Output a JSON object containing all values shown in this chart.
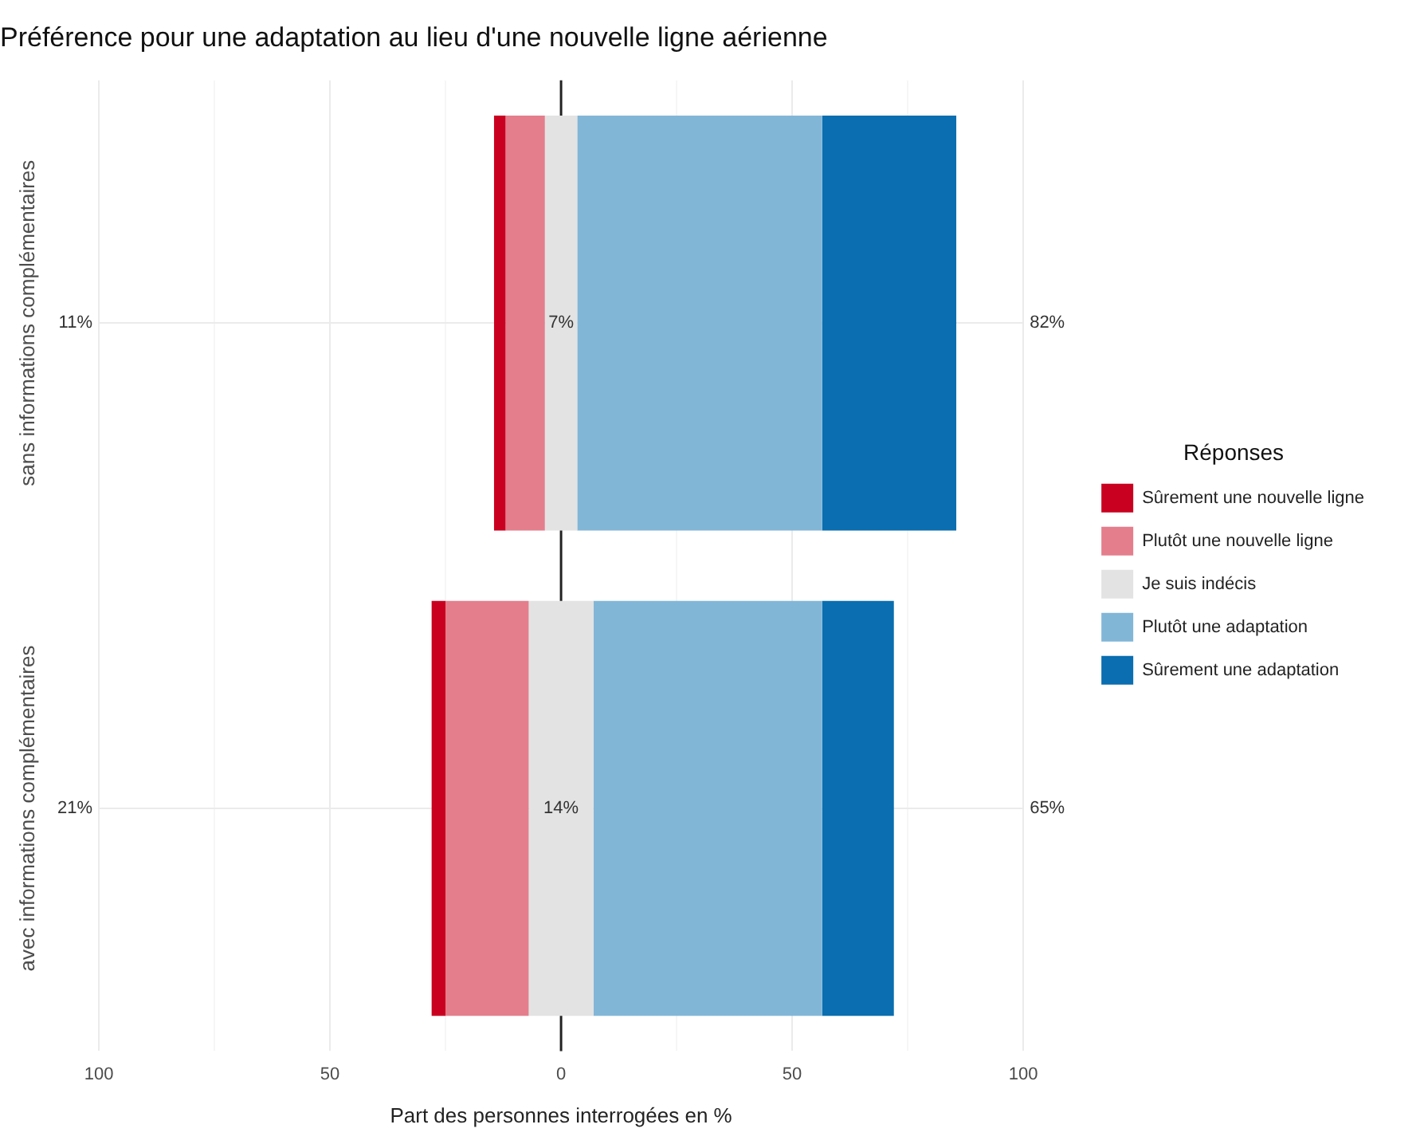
{
  "chart_data": {
    "type": "bar",
    "orientation": "horizontal",
    "title": "Préférence pour une adaptation au lieu d'une nouvelle ligne aérienne",
    "xlabel": "Part des personnes interrogées en %",
    "legend_title": "Réponses",
    "categories": [
      "sans informations complémentaires",
      "avec informations complémentaires"
    ],
    "series": [
      {
        "name": "Sûrement une nouvelle ligne",
        "color": "#ca0020",
        "base": [
          -14.5,
          -28
        ],
        "values": [
          2.5,
          3
        ]
      },
      {
        "name": "Plutôt une nouvelle ligne",
        "color": "#e47e8c",
        "base": [
          -12,
          -25
        ],
        "values": [
          8.5,
          18
        ]
      },
      {
        "name": "Je suis indécis",
        "color": "#e3e3e3",
        "base": [
          -3.5,
          -7
        ],
        "values": [
          7,
          14
        ],
        "value_labels": [
          "7%",
          "14%"
        ]
      },
      {
        "name": "Plutôt une adaptation",
        "color": "#82b6d7",
        "base": [
          3.5,
          7
        ],
        "values": [
          53,
          49.5
        ]
      },
      {
        "name": "Sûrement une adaptation",
        "color": "#0a6eb0",
        "base": [
          56.5,
          56.5
        ],
        "values": [
          29,
          15.5
        ]
      }
    ],
    "xlim": [
      -100,
      100
    ],
    "xticks": [
      {
        "value": -100,
        "label": "100"
      },
      {
        "value": -75,
        "label": null
      },
      {
        "value": -50,
        "label": "50"
      },
      {
        "value": -25,
        "label": null
      },
      0,
      {
        "value": 25,
        "label": null
      },
      50,
      {
        "value": 75,
        "label": null
      },
      100
    ],
    "ref_lines": [
      {
        "axis": "x",
        "value": 0,
        "color": "#222222"
      }
    ],
    "annotations": [
      "11%",
      "82%",
      "21%",
      "65%"
    ],
    "grid": true,
    "legend": "right"
  }
}
